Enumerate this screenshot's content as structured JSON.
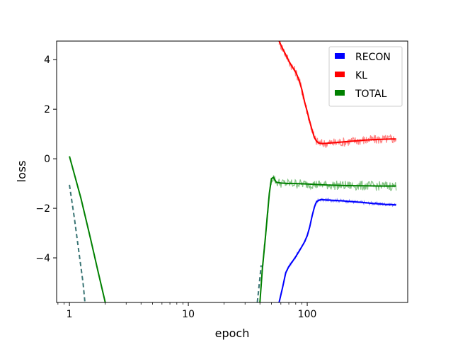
{
  "chart_data": {
    "type": "line",
    "title": "",
    "xlabel": "epoch",
    "ylabel": "loss",
    "x_scale": "log",
    "xlim": [
      0.78,
      700
    ],
    "ylim": [
      -5.8,
      4.75
    ],
    "grid": false,
    "legend_position": "top-right",
    "x_ticks": [
      {
        "value": 1,
        "label": "1"
      },
      {
        "value": 10,
        "label": "10"
      },
      {
        "value": 100,
        "label": "100"
      }
    ],
    "y_ticks": [
      {
        "value": 4,
        "label": "4"
      },
      {
        "value": 2,
        "label": "2"
      },
      {
        "value": 0,
        "label": "0"
      },
      {
        "value": -2,
        "label": "−2"
      },
      {
        "value": -4,
        "label": "−4"
      }
    ],
    "series": [
      {
        "name": "RECON",
        "color": "#0000ff",
        "noise_color": "#6f6fff",
        "x": [
          58,
          62,
          66,
          70,
          75,
          80,
          85,
          90,
          95,
          100,
          105,
          110,
          115,
          120,
          130,
          140,
          150,
          170,
          200,
          250,
          300,
          350,
          400,
          450,
          500,
          560
        ],
        "y": [
          -5.8,
          -5.2,
          -4.6,
          -4.35,
          -4.15,
          -3.95,
          -3.75,
          -3.55,
          -3.35,
          -3.1,
          -2.75,
          -2.3,
          -1.95,
          -1.72,
          -1.65,
          -1.66,
          -1.67,
          -1.68,
          -1.7,
          -1.74,
          -1.77,
          -1.8,
          -1.82,
          -1.84,
          -1.85,
          -1.86
        ]
      },
      {
        "name": "KL",
        "color": "#ff0000",
        "noise_color": "#ff7070",
        "x": [
          58,
          62,
          66,
          70,
          75,
          80,
          85,
          90,
          95,
          100,
          105,
          110,
          115,
          120,
          125,
          130,
          140,
          150,
          170,
          200,
          250,
          300,
          350,
          400,
          450,
          500,
          560
        ],
        "y": [
          4.75,
          4.45,
          4.2,
          3.95,
          3.7,
          3.5,
          3.2,
          2.8,
          2.3,
          1.9,
          1.5,
          1.15,
          0.85,
          0.7,
          0.64,
          0.62,
          0.62,
          0.63,
          0.65,
          0.68,
          0.72,
          0.75,
          0.77,
          0.78,
          0.79,
          0.8,
          0.8
        ]
      },
      {
        "name": "TOTAL",
        "color": "#008000",
        "noise_color": "#70b870",
        "x": [
          1,
          1.25,
          1.5,
          1.75,
          2.0
        ],
        "y": [
          0.1,
          -1.6,
          -3.2,
          -4.6,
          -5.8
        ],
        "x2": [
          40,
          42,
          44,
          46,
          48,
          50,
          52,
          55,
          60,
          70,
          80,
          100,
          120,
          150,
          200,
          300,
          400,
          500,
          560
        ],
        "y2": [
          -5.8,
          -4.4,
          -3.4,
          -2.4,
          -1.4,
          -0.8,
          -0.75,
          -0.95,
          -0.98,
          -1.0,
          -1.0,
          -1.02,
          -1.04,
          -1.06,
          -1.08,
          -1.09,
          -1.1,
          -1.1,
          -1.1
        ]
      },
      {
        "color": "#3a7575",
        "dashed": true,
        "x": [
          1,
          1.1,
          1.2,
          1.3,
          1.35
        ],
        "y": [
          -1.05,
          -2.4,
          -3.75,
          -5.0,
          -5.8
        ],
        "x2": [
          38,
          39,
          40,
          41
        ],
        "y2": [
          -5.8,
          -5.3,
          -4.8,
          -4.3
        ]
      }
    ]
  }
}
